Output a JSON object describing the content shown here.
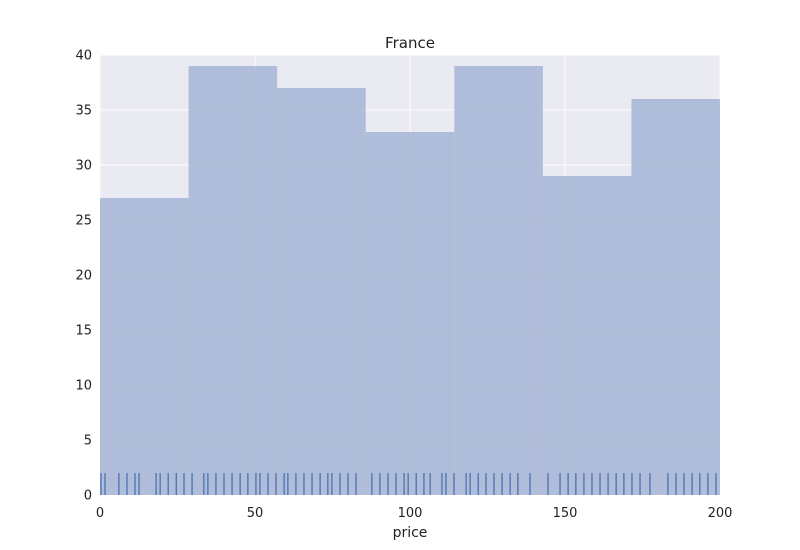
{
  "chart_data": {
    "type": "bar",
    "title": "France",
    "xlabel": "price",
    "ylabel": "",
    "xlim": [
      0,
      200
    ],
    "ylim": [
      0,
      40
    ],
    "xticks": [
      0,
      50,
      100,
      150,
      200
    ],
    "yticks": [
      0,
      5,
      10,
      15,
      20,
      25,
      30,
      35,
      40
    ],
    "grid": true,
    "legend": "none",
    "colors": {
      "plot_background": "#eaeaf2",
      "grid": "#ffffff",
      "bar_fill": "#a9b9d8",
      "rug": "#4c72b0"
    },
    "bins": [
      {
        "x0": 0,
        "x1": 28.57,
        "count": 27
      },
      {
        "x0": 28.57,
        "x1": 57.14,
        "count": 39
      },
      {
        "x0": 57.14,
        "x1": 85.71,
        "count": 37
      },
      {
        "x0": 85.71,
        "x1": 114.29,
        "count": 33
      },
      {
        "x0": 114.29,
        "x1": 142.86,
        "count": 39
      },
      {
        "x0": 142.86,
        "x1": 171.43,
        "count": 29
      },
      {
        "x0": 171.43,
        "x1": 200,
        "count": 36
      }
    ],
    "rug": [
      0.3,
      1.6,
      6.1,
      8.7,
      11.3,
      12.6,
      18.1,
      19.4,
      22.0,
      24.6,
      27.1,
      29.7,
      33.5,
      34.8,
      37.4,
      40.0,
      42.6,
      45.2,
      47.7,
      50.3,
      51.6,
      54.2,
      56.8,
      59.4,
      60.6,
      63.2,
      65.8,
      68.4,
      71.0,
      73.5,
      74.8,
      77.4,
      80.0,
      82.6,
      87.7,
      90.3,
      92.9,
      95.5,
      98.1,
      99.4,
      102.0,
      104.5,
      106.5,
      110.3,
      111.6,
      114.2,
      118.1,
      119.4,
      122.0,
      124.5,
      127.1,
      129.7,
      132.3,
      134.8,
      138.7,
      144.5,
      148.4,
      151.0,
      153.5,
      156.1,
      158.7,
      161.3,
      163.9,
      166.5,
      169.0,
      171.6,
      174.2,
      177.4,
      183.2,
      185.8,
      188.4,
      191.0,
      193.5,
      196.1,
      198.7
    ]
  }
}
